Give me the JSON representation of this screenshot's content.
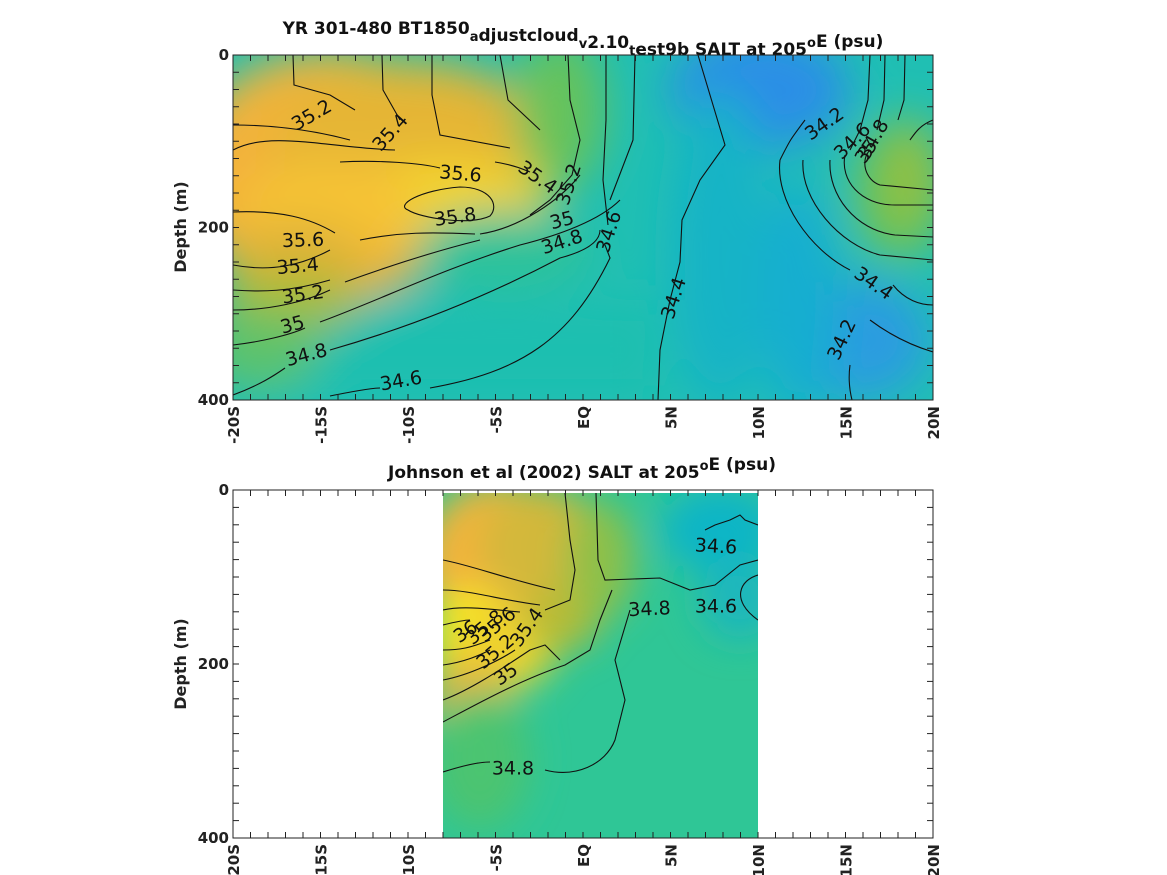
{
  "chart_data": [
    {
      "type": "heatmap",
      "title_parts": [
        {
          "t": "YR 301-480 BT1850"
        },
        {
          "t": "a",
          "sub": true
        },
        {
          "t": "djustcloud"
        },
        {
          "t": "v",
          "sub": true
        },
        {
          "t": "2.10"
        },
        {
          "t": "t",
          "sub": true
        },
        {
          "t": "est9b SALT at 205"
        },
        {
          "t": "o",
          "sup": true
        },
        {
          "t": "E (psu)"
        }
      ],
      "ylabel": "Depth (m)",
      "xlim": [
        -20,
        20
      ],
      "ylim": [
        0,
        400
      ],
      "y_reversed": true,
      "x_ticks": [
        {
          "v": -20,
          "label": "-20S"
        },
        {
          "v": -15,
          "label": "-15S"
        },
        {
          "v": -10,
          "label": "-10S"
        },
        {
          "v": -5,
          "label": "-5S"
        },
        {
          "v": 0,
          "label": "EQ"
        },
        {
          "v": 5,
          "label": "5N"
        },
        {
          "v": 10,
          "label": "10N"
        },
        {
          "v": 15,
          "label": "15N"
        },
        {
          "v": 20,
          "label": "20N"
        }
      ],
      "y_ticks": [
        {
          "v": 0,
          "label": "0"
        },
        {
          "v": 200,
          "label": "200"
        },
        {
          "v": 400,
          "label": "400"
        }
      ],
      "data_extent": {
        "lat": [
          -20,
          20
        ],
        "depth": [
          0,
          400
        ]
      },
      "colormap": "parula",
      "color_limits": [
        34.0,
        36.0
      ],
      "contour_labels": [
        {
          "text": "35.2",
          "lat": -15.5,
          "depth": 70,
          "angle": -30
        },
        {
          "text": "35.4",
          "lat": -11,
          "depth": 90,
          "angle": -48
        },
        {
          "text": "35.6",
          "lat": -7,
          "depth": 138,
          "angle": 5
        },
        {
          "text": "35.4",
          "lat": -2.6,
          "depth": 142,
          "angle": 35
        },
        {
          "text": "35.2",
          "lat": -0.8,
          "depth": 150,
          "angle": -72
        },
        {
          "text": "35.8",
          "lat": -7.3,
          "depth": 188,
          "angle": -8
        },
        {
          "text": "35",
          "lat": -1.2,
          "depth": 192,
          "angle": -15
        },
        {
          "text": "34.8",
          "lat": -1.2,
          "depth": 217,
          "angle": -18
        },
        {
          "text": "34.6",
          "lat": 1.5,
          "depth": 205,
          "angle": -72
        },
        {
          "text": "35.6",
          "lat": -16,
          "depth": 215,
          "angle": -2
        },
        {
          "text": "35.4",
          "lat": -16.3,
          "depth": 245,
          "angle": -5
        },
        {
          "text": "35.2",
          "lat": -16,
          "depth": 278,
          "angle": -8
        },
        {
          "text": "35",
          "lat": -16.6,
          "depth": 313,
          "angle": -15
        },
        {
          "text": "34.8",
          "lat": -15.8,
          "depth": 348,
          "angle": -15
        },
        {
          "text": "34.6",
          "lat": -10.4,
          "depth": 378,
          "angle": -10
        },
        {
          "text": "34.4",
          "lat": 5.2,
          "depth": 282,
          "angle": -72
        },
        {
          "text": "34.2",
          "lat": 13.8,
          "depth": 80,
          "angle": -35
        },
        {
          "text": "34.6",
          "lat": 15.4,
          "depth": 100,
          "angle": -45
        },
        {
          "text": "34.8",
          "lat": 16.6,
          "depth": 98,
          "angle": -60
        },
        {
          "text": "35",
          "lat": 16.2,
          "depth": 112,
          "angle": -55
        },
        {
          "text": "34.4",
          "lat": 16.6,
          "depth": 265,
          "angle": 35
        },
        {
          "text": "34.2",
          "lat": 14.8,
          "depth": 330,
          "angle": -65
        }
      ]
    },
    {
      "type": "heatmap",
      "title_parts": [
        {
          "t": "Johnson et al (2002) SALT at 205"
        },
        {
          "t": "o",
          "sup": true
        },
        {
          "t": "E (psu)"
        }
      ],
      "ylabel": "Depth (m)",
      "xlim": [
        -20,
        20
      ],
      "ylim": [
        0,
        400
      ],
      "y_reversed": true,
      "x_ticks": [
        {
          "v": -20,
          "label": "-20S"
        },
        {
          "v": -15,
          "label": "-15S"
        },
        {
          "v": -10,
          "label": "-10S"
        },
        {
          "v": -5,
          "label": "-5S"
        },
        {
          "v": 0,
          "label": "EQ"
        },
        {
          "v": 5,
          "label": "5N"
        },
        {
          "v": 10,
          "label": "10N"
        },
        {
          "v": 15,
          "label": "15N"
        },
        {
          "v": 20,
          "label": "20N"
        }
      ],
      "y_ticks": [
        {
          "v": 0,
          "label": "0"
        },
        {
          "v": 200,
          "label": "200"
        },
        {
          "v": 400,
          "label": "400"
        }
      ],
      "data_extent": {
        "lat": [
          -8,
          10
        ],
        "depth": [
          0,
          400
        ]
      },
      "colormap": "parula",
      "color_limits": [
        34.0,
        36.0
      ],
      "contour_labels": [
        {
          "text": "34.6",
          "lat": 7.6,
          "depth": 65,
          "angle": 3
        },
        {
          "text": "34.8",
          "lat": 3.8,
          "depth": 137,
          "angle": -3
        },
        {
          "text": "34.6",
          "lat": 7.6,
          "depth": 134,
          "angle": 0
        },
        {
          "text": "36",
          "lat": -6.7,
          "depth": 163,
          "angle": -35
        },
        {
          "text": "35.8",
          "lat": -5.6,
          "depth": 158,
          "angle": -40
        },
        {
          "text": "35.6",
          "lat": -4.9,
          "depth": 155,
          "angle": -40
        },
        {
          "text": "35.4",
          "lat": -3.2,
          "depth": 158,
          "angle": -55
        },
        {
          "text": "35.2",
          "lat": -5.0,
          "depth": 186,
          "angle": -40
        },
        {
          "text": "35",
          "lat": -4.4,
          "depth": 212,
          "angle": -35
        },
        {
          "text": "34.8",
          "lat": -4.0,
          "depth": 320,
          "angle": 0
        }
      ]
    }
  ]
}
